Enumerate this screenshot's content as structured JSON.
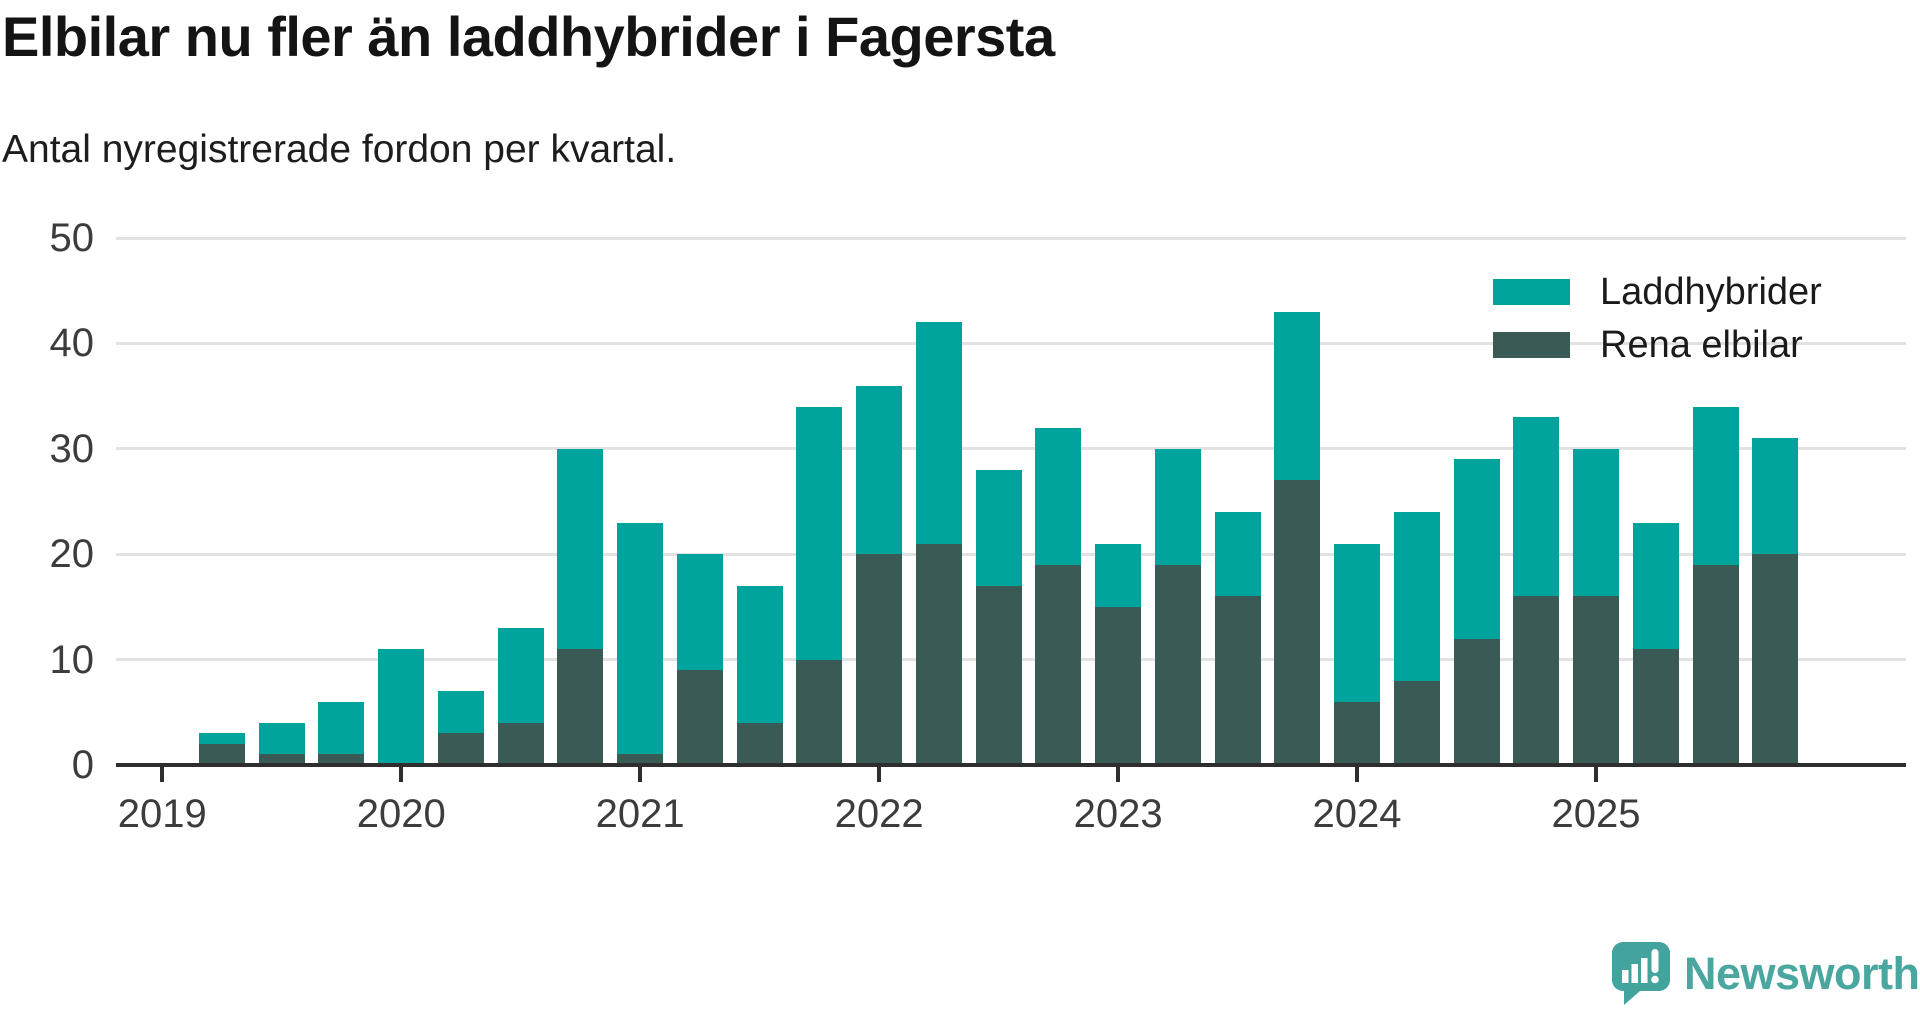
{
  "branding": {
    "logo_text": "Newsworthy",
    "brand_color": "#43a49d"
  },
  "chart_data": {
    "type": "bar",
    "stacked": true,
    "title": "Elbilar nu fler än laddhybrider i Fagersta",
    "subtitle": "Antal nyregistrerade fordon per kvartal.",
    "categories": [
      "2019 Q2",
      "2019 Q3",
      "2019 Q4",
      "2020 Q1",
      "2020 Q2",
      "2020 Q3",
      "2020 Q4",
      "2021 Q1",
      "2021 Q2",
      "2021 Q3",
      "2021 Q4",
      "2022 Q1",
      "2022 Q2",
      "2022 Q3",
      "2022 Q4",
      "2023 Q1",
      "2023 Q2",
      "2023 Q3",
      "2023 Q4",
      "2024 Q1",
      "2024 Q2",
      "2024 Q3",
      "2024 Q4",
      "2025 Q1",
      "2025 Q2",
      "2025 Q3",
      "2025 Q4"
    ],
    "series": [
      {
        "name": "Laddhybrider",
        "color": "#00a49c",
        "stack_position": "top",
        "values": [
          1,
          3,
          5,
          11,
          4,
          9,
          19,
          22,
          11,
          13,
          24,
          16,
          21,
          11,
          13,
          6,
          11,
          8,
          16,
          15,
          16,
          17,
          17,
          14,
          12,
          15,
          11
        ]
      },
      {
        "name": "Rena elbilar",
        "color": "#3a5a56",
        "stack_position": "bottom",
        "values": [
          2,
          1,
          1,
          0,
          3,
          4,
          11,
          1,
          9,
          4,
          10,
          20,
          21,
          17,
          19,
          15,
          19,
          16,
          27,
          6,
          8,
          12,
          16,
          16,
          11,
          19,
          20
        ]
      }
    ],
    "totals": [
      3,
      4,
      6,
      11,
      7,
      13,
      30,
      23,
      20,
      17,
      34,
      36,
      42,
      28,
      32,
      21,
      30,
      24,
      43,
      21,
      24,
      29,
      33,
      30,
      23,
      34,
      31
    ],
    "x_tick_labels": [
      "2019",
      "2020",
      "2021",
      "2022",
      "2023",
      "2024",
      "2025"
    ],
    "y_ticks": [
      0,
      10,
      20,
      30,
      40,
      50
    ],
    "ylim": [
      0,
      50
    ],
    "grid": "horizontal",
    "legend_position": "top-right",
    "axis_color": "#2e2e2e",
    "grid_color": "#e2e2e2",
    "tick_label_color": "#3c3c3c",
    "text_color": "#1a1a1a"
  }
}
